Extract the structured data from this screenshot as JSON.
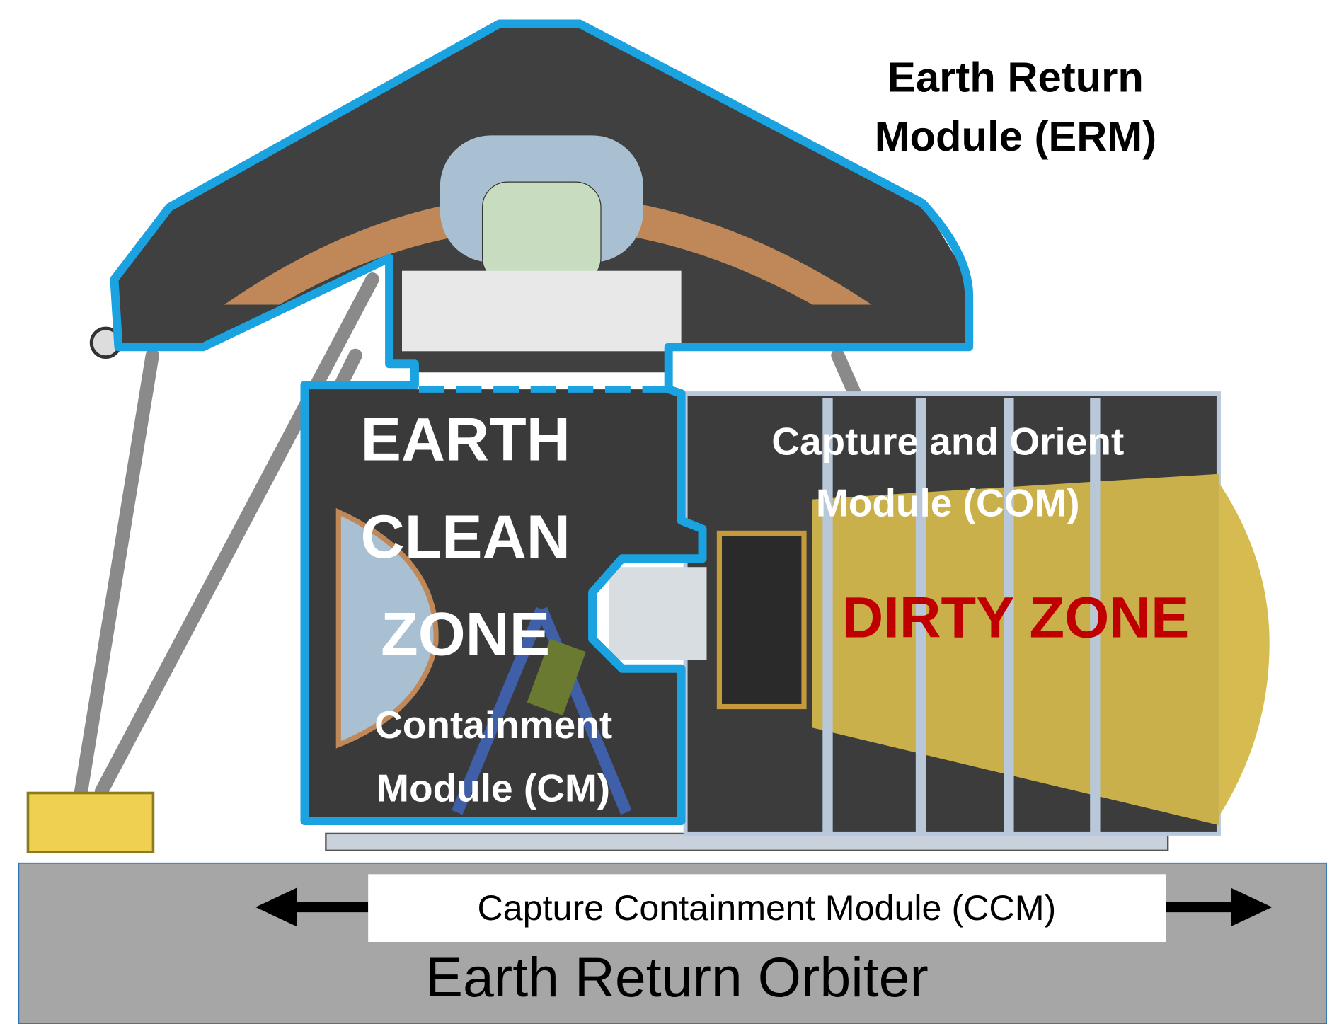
{
  "erm_label": {
    "lines": [
      "Earth Return",
      "Module (ERM)"
    ]
  },
  "clean_zone_label": {
    "lines": [
      "EARTH",
      "CLEAN",
      "ZONE"
    ]
  },
  "com_label": {
    "lines": [
      "Capture and Orient",
      "Module (COM)"
    ]
  },
  "dirty_zone_label": "DIRTY ZONE",
  "cm_label": {
    "lines": [
      "Containment",
      "Module (CM)"
    ]
  },
  "ccm_label": "Capture Containment Module (CCM)",
  "orbiter_label": "Earth Return Orbiter"
}
